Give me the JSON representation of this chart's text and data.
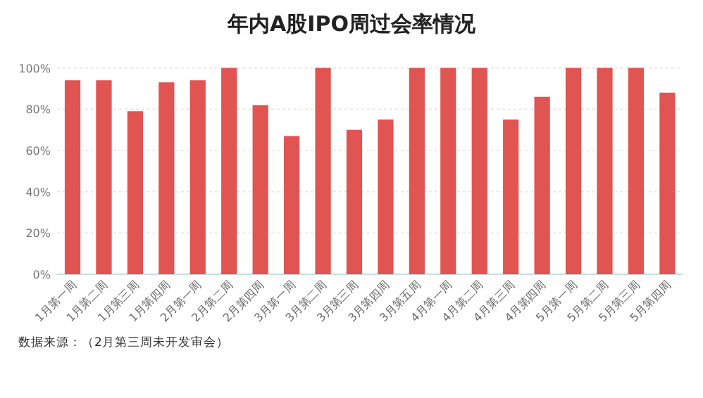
{
  "chart_data": {
    "type": "bar",
    "title": "年内A股IPO周过会率情况",
    "categories": [
      "1月第一周",
      "1月第二周",
      "1月第三周",
      "1月第四周",
      "2月第一周",
      "2月第二周",
      "2月第四周",
      "3月第一周",
      "3月第二周",
      "3月第三周",
      "3月第四周",
      "3月第五周",
      "4月第一周",
      "4月第二周",
      "4月第三周",
      "4月第四周",
      "5月第一周",
      "5月第二周",
      "5月第三周",
      "5月第四周"
    ],
    "values": [
      94,
      94,
      79,
      93,
      94,
      100,
      82,
      67,
      100,
      70,
      75,
      100,
      100,
      100,
      75,
      86,
      100,
      100,
      100,
      88
    ],
    "color": "#e05452",
    "ylim": [
      0,
      100
    ],
    "yticks": [
      {
        "value": 0,
        "label": "0%"
      },
      {
        "value": 20,
        "label": "20%"
      },
      {
        "value": 40,
        "label": "40%"
      },
      {
        "value": 60,
        "label": "60%"
      },
      {
        "value": 80,
        "label": "80%"
      },
      {
        "value": 100,
        "label": "100%"
      }
    ],
    "grid": "y",
    "annotations": [
      "数据来源：（2月第三周未开发审会）"
    ]
  }
}
